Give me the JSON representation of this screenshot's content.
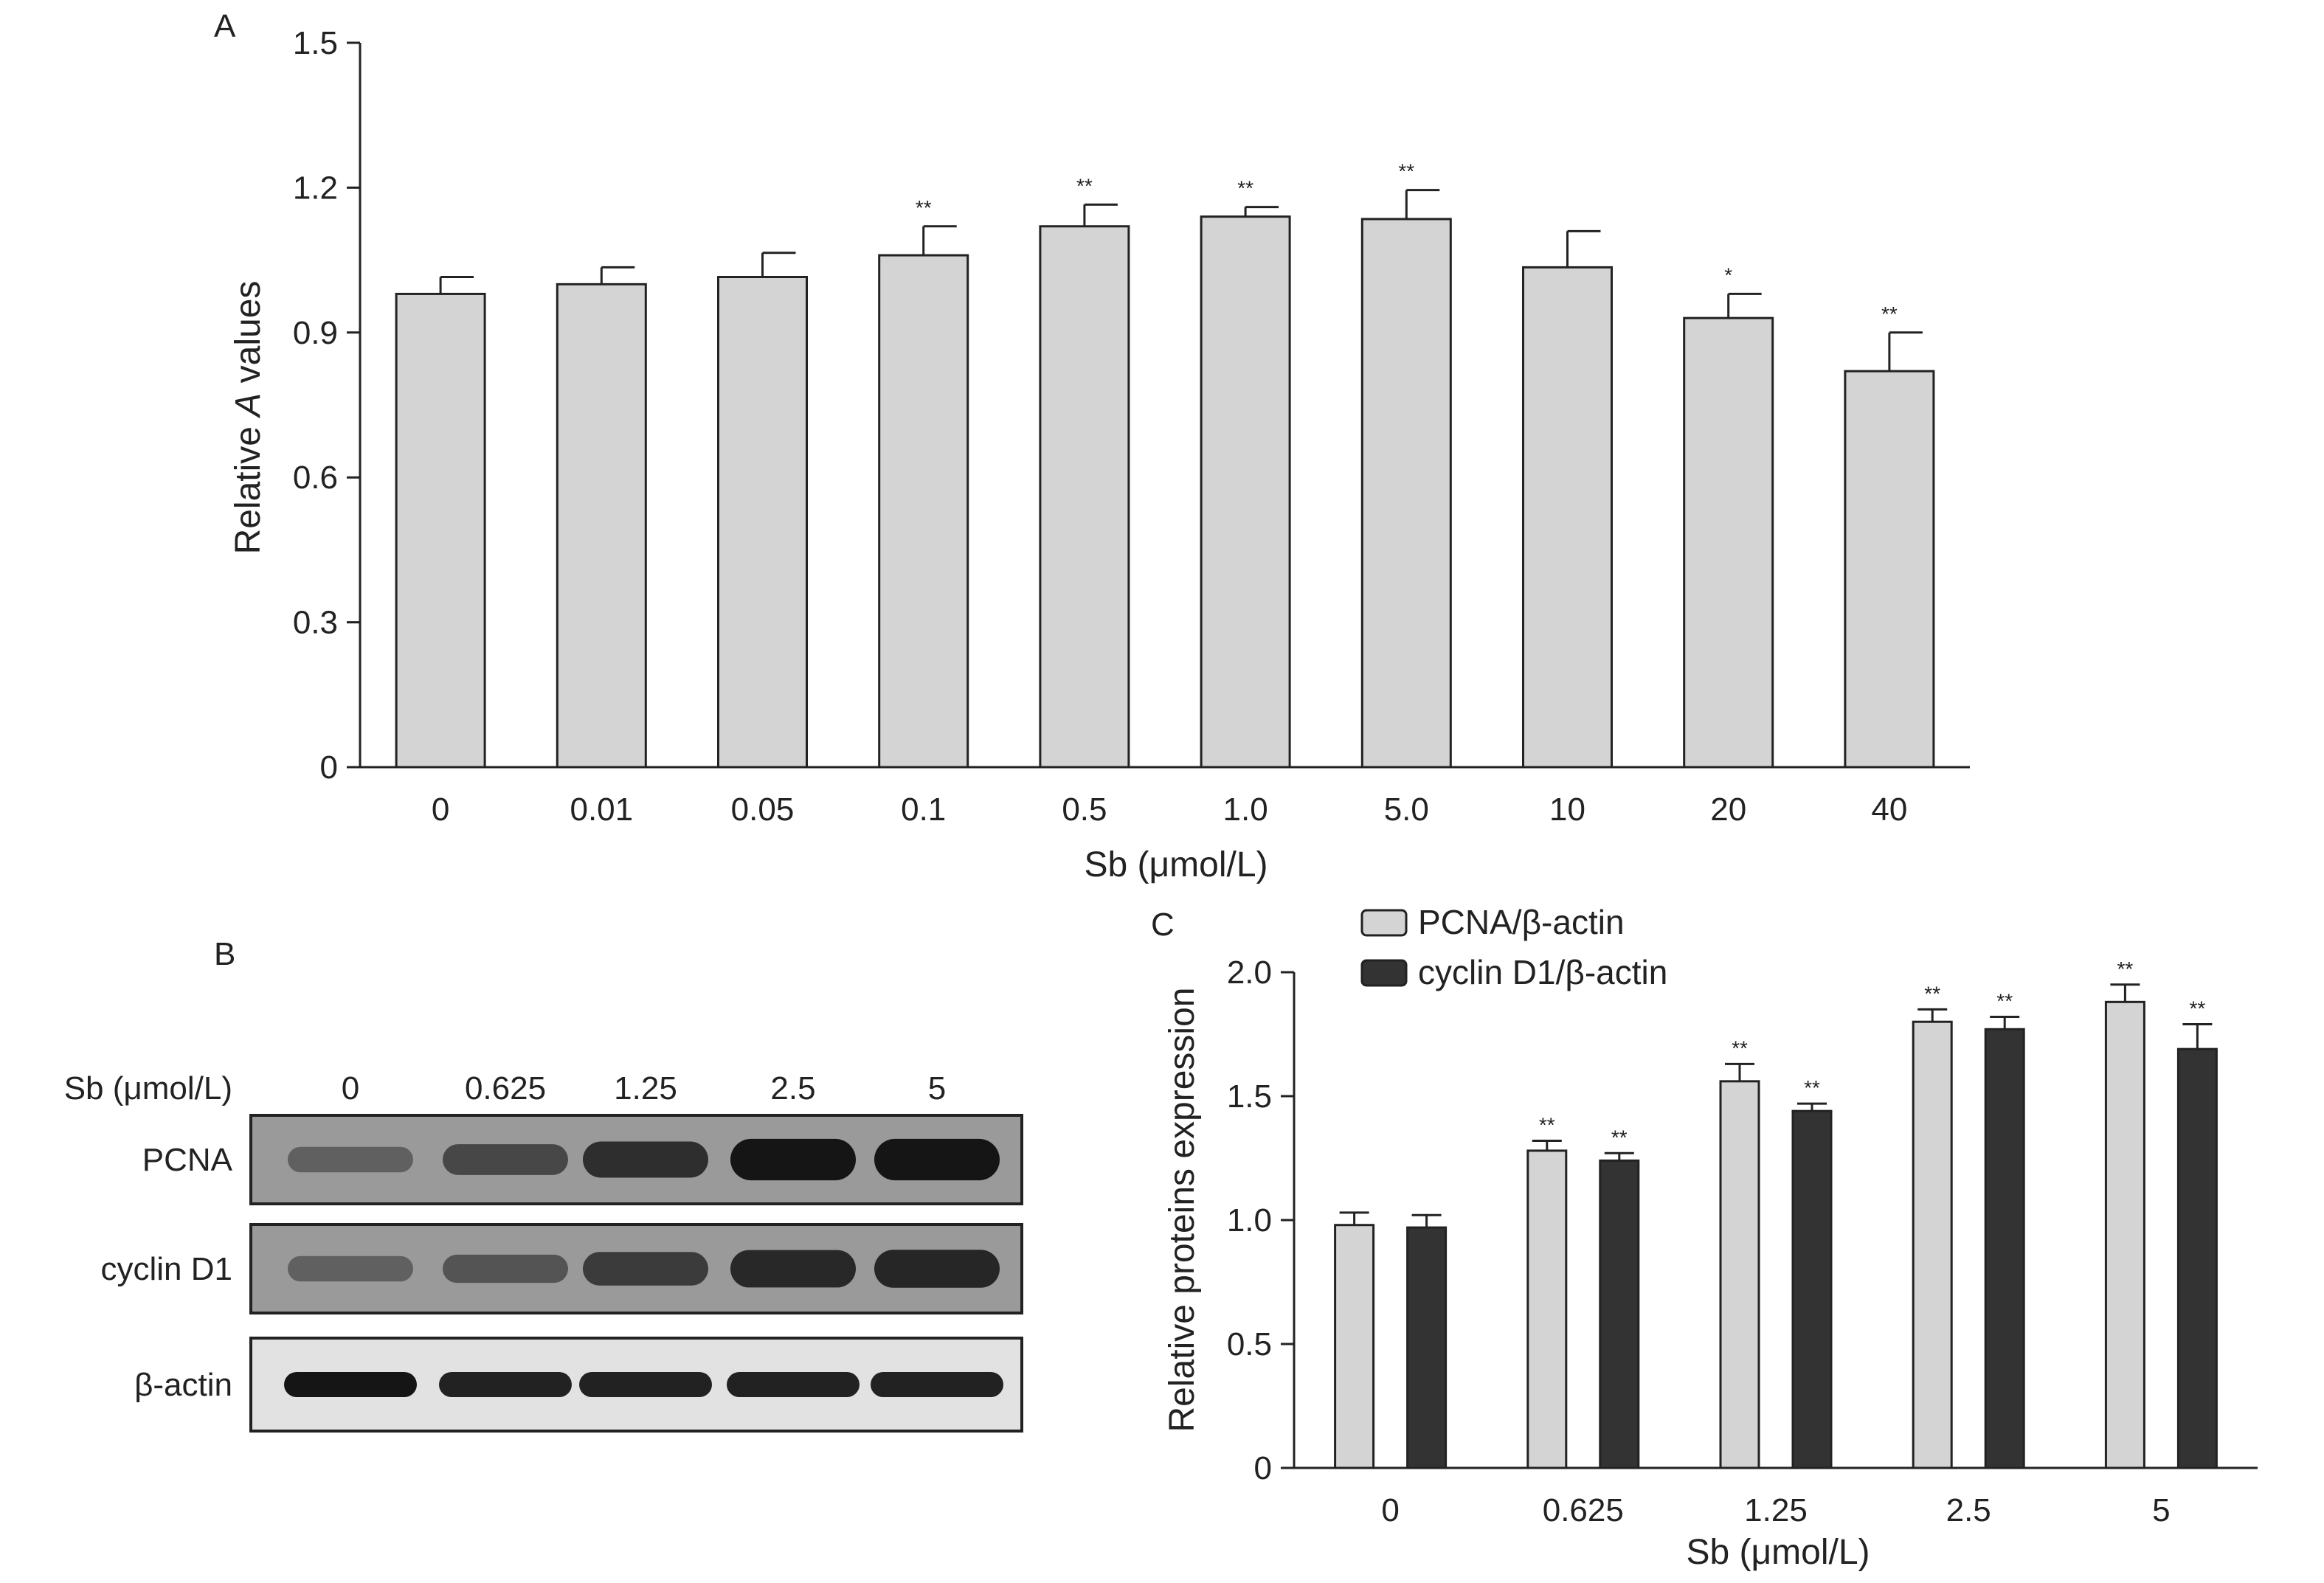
{
  "panels": {
    "a": "A",
    "b": "B",
    "c": "C"
  },
  "chart_data": [
    {
      "panel": "A",
      "type": "bar",
      "categories": [
        "0",
        "0.01",
        "0.05",
        "0.1",
        "0.5",
        "1.0",
        "5.0",
        "10",
        "20",
        "40"
      ],
      "values": [
        0.98,
        1.0,
        1.015,
        1.06,
        1.12,
        1.14,
        1.135,
        1.035,
        0.93,
        0.82
      ],
      "errors": [
        0.035,
        0.035,
        0.05,
        0.06,
        0.045,
        0.02,
        0.06,
        0.075,
        0.05,
        0.08
      ],
      "significance": [
        "",
        "",
        "",
        "**",
        "**",
        "**",
        "**",
        "",
        "*",
        "**"
      ],
      "xlabel": "Sb (μmol/L)",
      "ylabel_prefix": "Relative ",
      "ylabel_italic": "A",
      "ylabel_suffix": " values",
      "ylim": [
        0,
        1.5
      ],
      "yticks": [
        "0",
        "0.3",
        "0.6",
        "0.9",
        "1.2",
        "1.5"
      ],
      "bar_color": "#d4d4d4",
      "grid": false
    },
    {
      "panel": "C",
      "type": "bar",
      "categories": [
        "0",
        "0.625",
        "1.25",
        "2.5",
        "5"
      ],
      "series": [
        {
          "name": "PCNA/β-actin",
          "values": [
            0.98,
            1.28,
            1.56,
            1.8,
            1.88
          ],
          "errors": [
            0.05,
            0.04,
            0.07,
            0.05,
            0.07
          ],
          "significance": [
            "",
            "**",
            "**",
            "**",
            "**"
          ],
          "color": "#d4d4d4"
        },
        {
          "name": "cyclin D1/β-actin",
          "values": [
            0.97,
            1.24,
            1.44,
            1.77,
            1.69
          ],
          "errors": [
            0.05,
            0.03,
            0.03,
            0.05,
            0.1
          ],
          "significance": [
            "",
            "**",
            "**",
            "**",
            "**"
          ],
          "color": "#333333"
        }
      ],
      "xlabel": "Sb (μmol/L)",
      "ylabel": "Relative proteins expression",
      "ylim": [
        0,
        2.0
      ],
      "yticks": [
        "0",
        "0.5",
        "1.0",
        "1.5",
        "2.0"
      ],
      "legend_position": "top-left",
      "grid": false
    }
  ],
  "blot": {
    "header_label": "Sb (μmol/L)",
    "lanes": [
      "0",
      "0.625",
      "1.25",
      "2.5",
      "5"
    ],
    "rows": [
      {
        "label": "PCNA",
        "intensity": [
          0.35,
          0.55,
          0.75,
          0.95,
          0.95
        ]
      },
      {
        "label": "cyclin D1",
        "intensity": [
          0.35,
          0.45,
          0.65,
          0.8,
          0.82
        ]
      },
      {
        "label": "β-actin",
        "intensity": [
          0.95,
          0.85,
          0.85,
          0.85,
          0.85
        ]
      }
    ]
  }
}
